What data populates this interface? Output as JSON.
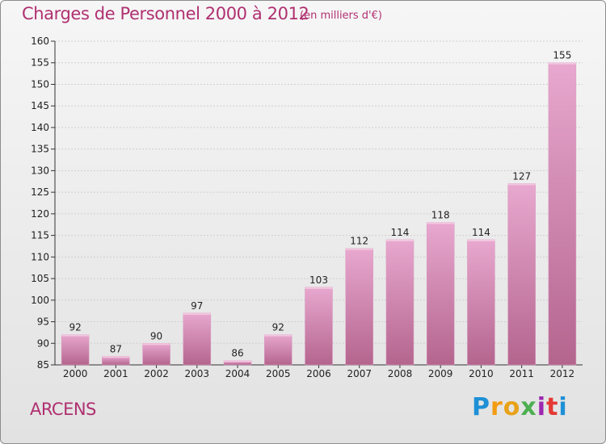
{
  "title": "Charges de Personnel 2000 à 2012",
  "subtitle": "(en milliers d'€)",
  "town": "ARCENS",
  "logo": {
    "text": "Proxiti",
    "letters": [
      "P",
      "r",
      "o",
      "x",
      "i",
      "t",
      "i"
    ],
    "colors": [
      "#1e90d6",
      "#f39c12",
      "#e8a21a",
      "#4caf50",
      "#9c27b0",
      "#e53935",
      "#1e90d6"
    ]
  },
  "colors": {
    "bar_top": "#e8a8cf",
    "bar_bottom": "#b4658e",
    "accent": "#b03070"
  },
  "chart_data": {
    "type": "bar",
    "title": "Charges de Personnel 2000 à 2012",
    "subtitle": "(en milliers d'€)",
    "xlabel": "",
    "ylabel": "",
    "categories": [
      "2000",
      "2001",
      "2002",
      "2003",
      "2004",
      "2005",
      "2006",
      "2007",
      "2008",
      "2009",
      "2010",
      "2011",
      "2012"
    ],
    "values": [
      92,
      87,
      90,
      97,
      86,
      92,
      103,
      112,
      114,
      118,
      114,
      127,
      155
    ],
    "ylim": [
      85,
      160
    ],
    "yticks": [
      85,
      90,
      95,
      100,
      105,
      110,
      115,
      120,
      125,
      130,
      135,
      140,
      145,
      150,
      155,
      160
    ],
    "grid": true,
    "data_labels": true
  }
}
